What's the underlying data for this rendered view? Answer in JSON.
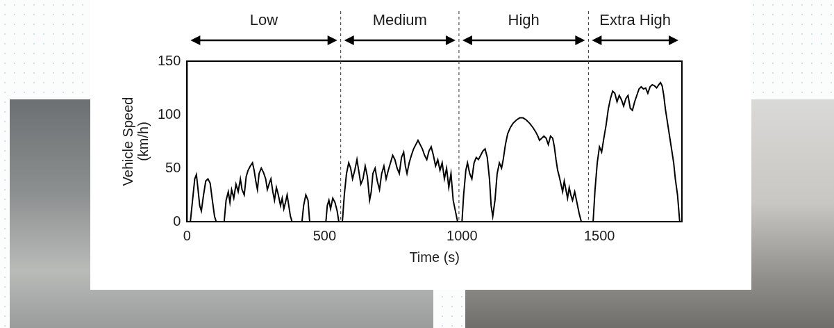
{
  "chart_data": {
    "type": "line",
    "x_label": "Time (s)",
    "y_label": "Vehicle Speed (km/h)",
    "color": "#000000",
    "grid": false,
    "xlim": [
      0,
      1800
    ],
    "xticks": [
      0,
      500,
      1000,
      1500
    ],
    "ylim": [
      0,
      150
    ],
    "yticks": [
      0,
      50,
      100,
      150
    ],
    "phases": [
      {
        "label": "Low",
        "start": 0,
        "end": 559
      },
      {
        "label": "Medium",
        "start": 559,
        "end": 989
      },
      {
        "label": "High",
        "start": 989,
        "end": 1460
      },
      {
        "label": "Extra High",
        "start": 1460,
        "end": 1800
      }
    ],
    "x": [
      0,
      12,
      20,
      28,
      34,
      40,
      46,
      52,
      60,
      68,
      76,
      84,
      92,
      100,
      106,
      135,
      142,
      150,
      156,
      162,
      170,
      178,
      186,
      194,
      200,
      208,
      215,
      222,
      230,
      238,
      244,
      250,
      256,
      262,
      270,
      278,
      286,
      292,
      298,
      305,
      312,
      318,
      325,
      332,
      340,
      346,
      352,
      358,
      364,
      370,
      376,
      382,
      418,
      424,
      432,
      440,
      446,
      505,
      510,
      516,
      522,
      530,
      538,
      546,
      552,
      565,
      572,
      580,
      588,
      595,
      602,
      610,
      618,
      626,
      632,
      640,
      648,
      656,
      664,
      670,
      676,
      684,
      692,
      700,
      708,
      716,
      724,
      732,
      740,
      748,
      756,
      764,
      772,
      780,
      788,
      794,
      800,
      808,
      816,
      824,
      832,
      840,
      848,
      856,
      864,
      872,
      880,
      888,
      896,
      904,
      912,
      920,
      928,
      936,
      944,
      952,
      960,
      968,
      976,
      984,
      1000,
      1006,
      1014,
      1020,
      1028,
      1036,
      1044,
      1052,
      1060,
      1068,
      1076,
      1084,
      1092,
      1100,
      1106,
      1112,
      1120,
      1128,
      1136,
      1144,
      1150,
      1158,
      1166,
      1176,
      1186,
      1198,
      1210,
      1222,
      1234,
      1246,
      1258,
      1268,
      1276,
      1282,
      1290,
      1298,
      1306,
      1314,
      1322,
      1330,
      1336,
      1342,
      1348,
      1354,
      1360,
      1366,
      1372,
      1378,
      1384,
      1390,
      1396,
      1402,
      1410,
      1418,
      1426,
      1434,
      1477,
      1484,
      1492,
      1500,
      1508,
      1516,
      1524,
      1532,
      1540,
      1548,
      1556,
      1564,
      1572,
      1580,
      1588,
      1596,
      1604,
      1612,
      1620,
      1628,
      1636,
      1644,
      1652,
      1660,
      1668,
      1676,
      1684,
      1692,
      1700,
      1708,
      1716,
      1722,
      1728,
      1734,
      1740,
      1746,
      1752,
      1758,
      1764,
      1770,
      1776,
      1784,
      1792
    ],
    "values": [
      0,
      0,
      20,
      40,
      44,
      30,
      15,
      10,
      25,
      38,
      40,
      36,
      20,
      5,
      0,
      0,
      20,
      28,
      18,
      30,
      22,
      35,
      28,
      40,
      30,
      25,
      42,
      48,
      52,
      55,
      48,
      38,
      30,
      45,
      50,
      46,
      40,
      30,
      35,
      40,
      28,
      20,
      32,
      25,
      15,
      22,
      12,
      18,
      25,
      15,
      5,
      0,
      0,
      15,
      25,
      20,
      0,
      0,
      15,
      20,
      12,
      22,
      18,
      10,
      0,
      0,
      25,
      45,
      55,
      50,
      40,
      48,
      58,
      45,
      35,
      40,
      52,
      42,
      20,
      28,
      45,
      50,
      38,
      30,
      45,
      52,
      40,
      48,
      55,
      62,
      58,
      50,
      45,
      60,
      65,
      52,
      45,
      55,
      62,
      68,
      72,
      76,
      72,
      68,
      62,
      58,
      66,
      70,
      62,
      52,
      58,
      48,
      55,
      40,
      50,
      32,
      45,
      20,
      10,
      0,
      0,
      25,
      48,
      55,
      45,
      40,
      55,
      60,
      58,
      62,
      66,
      68,
      60,
      40,
      15,
      5,
      20,
      45,
      55,
      50,
      58,
      72,
      82,
      88,
      92,
      95,
      97,
      97,
      95,
      92,
      88,
      84,
      80,
      76,
      78,
      80,
      78,
      72,
      80,
      78,
      70,
      58,
      48,
      42,
      35,
      28,
      38,
      30,
      22,
      32,
      25,
      20,
      28,
      18,
      8,
      0,
      0,
      30,
      55,
      70,
      65,
      78,
      90,
      105,
      115,
      122,
      120,
      112,
      118,
      114,
      108,
      115,
      118,
      106,
      104,
      112,
      118,
      124,
      126,
      124,
      125,
      120,
      126,
      128,
      127,
      125,
      128,
      130,
      127,
      118,
      105,
      95,
      85,
      75,
      65,
      55,
      40,
      25,
      0
    ]
  }
}
